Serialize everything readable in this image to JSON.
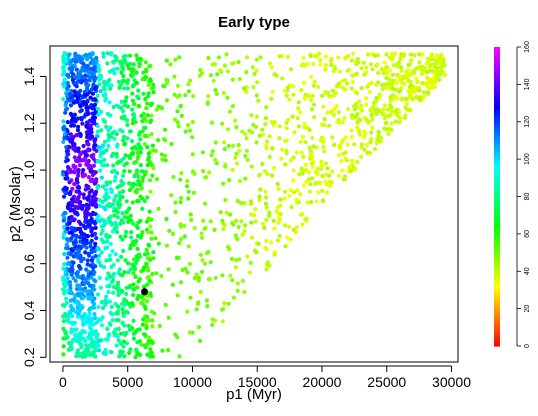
{
  "chart_data": {
    "type": "scatter",
    "title": "Early type",
    "xlabel": "p1 (Myr)",
    "ylabel": "p2 (Msolar)",
    "xlim": [
      -1000,
      30500
    ],
    "ylim": [
      0.18,
      1.53
    ],
    "x_ticks": [
      0,
      5000,
      10000,
      15000,
      20000,
      25000,
      30000
    ],
    "x_tick_labels": [
      "0",
      "5000",
      "10000",
      "15000",
      "20000",
      "25000",
      "30000"
    ],
    "y_ticks": [
      0.2,
      0.4,
      0.6,
      0.8,
      1.0,
      1.2,
      1.4
    ],
    "y_tick_labels": [
      "0.2",
      "0.4",
      "0.6",
      "0.8",
      "1.0",
      "1.2",
      "1.4"
    ],
    "grid": false,
    "colorbar": {
      "range": [
        0,
        160
      ],
      "ticks": [
        0,
        20,
        40,
        60,
        80,
        100,
        120,
        140,
        160
      ],
      "tick_labels": [
        "0",
        "20",
        "40",
        "60",
        "80",
        "100",
        "120",
        "140",
        "160"
      ],
      "colormap": "rainbow red-to-magenta"
    },
    "highlight_point": {
      "x": 6300,
      "y": 0.48,
      "color": "#000000"
    },
    "point_cloud": {
      "count": 2600,
      "x_range": [
        0,
        29500
      ],
      "y_range": [
        0.2,
        1.5
      ],
      "upper_envelope": [
        [
          0,
          1.5
        ],
        [
          8000,
          1.5
        ],
        [
          29500,
          1.5
        ]
      ],
      "lower_envelope": [
        [
          0,
          0.2
        ],
        [
          10000,
          0.2
        ],
        [
          20000,
          0.85
        ],
        [
          29500,
          1.4
        ]
      ],
      "value_encoding": "color value peaks (~155) near x≈1000–2500, y≈0.8–1.3 and falls to ~40 at large x"
    }
  }
}
